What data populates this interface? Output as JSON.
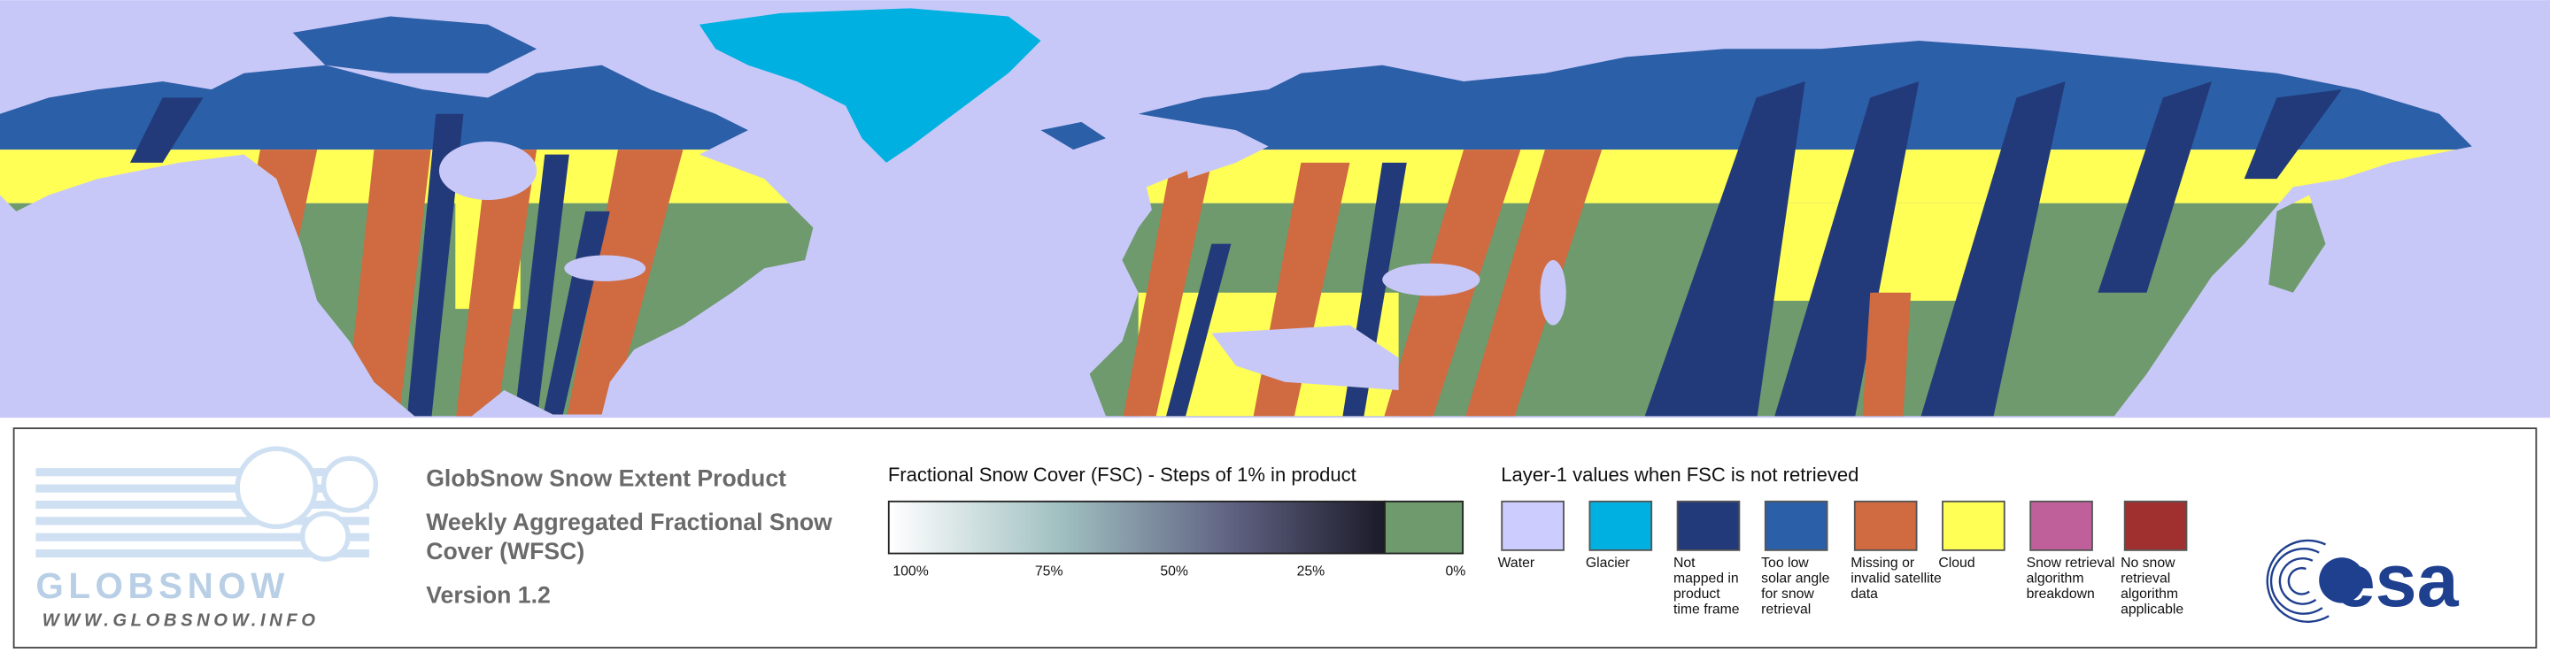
{
  "legend": {
    "product": "GlobSnow Snow Extent Product",
    "subtitle_lines": [
      "Weekly Aggregated Fractional Snow",
      "Cover (WFSC)"
    ],
    "version": "Version 1.2",
    "fsc": {
      "title": "Fractional Snow Cover (FSC) - Steps of 1% in product",
      "ticks": [
        "100%",
        "75%",
        "50%",
        "25%",
        "0%"
      ]
    },
    "layer1": {
      "title": "Layer-1 values when FSC is not retrieved",
      "classes": [
        {
          "color": "#ccccff",
          "label_lines": [
            "Water"
          ]
        },
        {
          "color": "#00b0e0",
          "label_lines": [
            "Glacier"
          ]
        },
        {
          "color": "#233a7a",
          "label_lines": [
            "Not",
            "mapped in",
            "product",
            "time frame"
          ]
        },
        {
          "color": "#2b5fa8",
          "label_lines": [
            "Too low",
            "solar angle",
            "for snow",
            "retrieval"
          ]
        },
        {
          "color": "#d06a40",
          "label_lines": [
            "Missing or",
            "invalid satellite",
            "data"
          ]
        },
        {
          "color": "#ffff55",
          "label_lines": [
            "Cloud"
          ]
        },
        {
          "color": "#c0609a",
          "label_lines": [
            "Snow retrieval",
            "algorithm",
            "breakdown"
          ]
        },
        {
          "color": "#a03030",
          "label_lines": [
            "No snow",
            "retrieval",
            "algorithm",
            "applicable"
          ]
        }
      ]
    }
  },
  "logos": {
    "globsnow": "GLOBSNOW",
    "url": "WWW.GLOBSNOW.INFO",
    "esa": "esa"
  }
}
